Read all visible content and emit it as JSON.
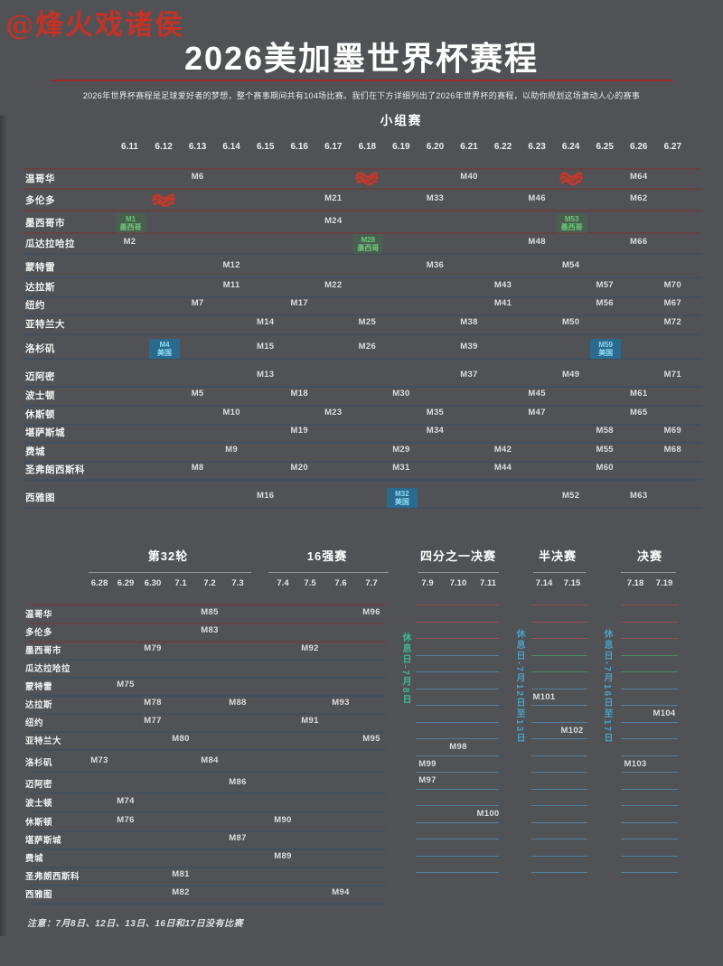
{
  "watermark": "@烽火戏诸侯",
  "title": "2026美加墨世界杯赛程",
  "subtitle": "2026年世界杯赛程是足球爱好者的梦想，整个赛事期间共有104场比赛。我们在下方详细列出了2026年世界杯的赛程，以助你规划这场激动人心的赛事",
  "footnote": "注意：7月8日、12日、13日、16日和17日没有比赛",
  "colors": {
    "background": "#505255",
    "accent_red": "#c0392b",
    "title_rule_red": "#9e2b2b",
    "watermark_red": "#c43227",
    "mexico_green": "#68c877",
    "usa_blue": "#8edcf5",
    "usa_chip_bg": "#20719c",
    "rest_day_teal": "#3db896",
    "rest_day_blue": "#49a0c6",
    "line_red": "#a05050",
    "line_green": "#4a9b66",
    "line_blue": "#538cb0"
  },
  "chart_data": {
    "type": "table",
    "title": "2026美加墨世界杯赛程",
    "cities": [
      "温哥华",
      "多伦多",
      "墨西哥市",
      "瓜达拉哈拉",
      "蒙特雷",
      "达拉斯",
      "纽约",
      "亚特兰大",
      "洛杉矶",
      "迈阿密",
      "波士顿",
      "休斯顿",
      "堪萨斯城",
      "费城",
      "圣弗朗西斯科",
      "西雅图"
    ],
    "group_stage": {
      "label": "小组赛",
      "dates": [
        "6.11",
        "6.12",
        "6.13",
        "6.14",
        "6.15",
        "6.16",
        "6.17",
        "6.18",
        "6.19",
        "6.20",
        "6.21",
        "6.22",
        "6.23",
        "6.24",
        "6.25",
        "6.26",
        "6.27"
      ],
      "matches": [
        {
          "m": "M1",
          "date": "6.11",
          "city": "墨西哥市",
          "tag": "墨西哥",
          "type": "mexico"
        },
        {
          "m": "M2",
          "date": "6.11",
          "city": "瓜达拉哈拉"
        },
        {
          "m": "M4",
          "date": "6.12",
          "city": "洛杉矶",
          "tag": "美国",
          "type": "usa"
        },
        {
          "m": "M5",
          "date": "6.13",
          "city": "波士顿"
        },
        {
          "m": "M6",
          "date": "6.13",
          "city": "温哥华"
        },
        {
          "m": "M7",
          "date": "6.13",
          "city": "纽约"
        },
        {
          "m": "M8",
          "date": "6.13",
          "city": "圣弗朗西斯科"
        },
        {
          "m": "M9",
          "date": "6.14",
          "city": "费城"
        },
        {
          "m": "M10",
          "date": "6.14",
          "city": "休斯顿"
        },
        {
          "m": "M11",
          "date": "6.14",
          "city": "达拉斯"
        },
        {
          "m": "M12",
          "date": "6.14",
          "city": "蒙特雷"
        },
        {
          "m": "M13",
          "date": "6.15",
          "city": "迈阿密"
        },
        {
          "m": "M14",
          "date": "6.15",
          "city": "亚特兰大"
        },
        {
          "m": "M15",
          "date": "6.15",
          "city": "洛杉矶"
        },
        {
          "m": "M16",
          "date": "6.15",
          "city": "西雅图"
        },
        {
          "m": "M17",
          "date": "6.16",
          "city": "纽约"
        },
        {
          "m": "M18",
          "date": "6.16",
          "city": "波士顿"
        },
        {
          "m": "M19",
          "date": "6.16",
          "city": "堪萨斯城"
        },
        {
          "m": "M20",
          "date": "6.16",
          "city": "圣弗朗西斯科"
        },
        {
          "m": "M21",
          "date": "6.17",
          "city": "多伦多"
        },
        {
          "m": "M22",
          "date": "6.17",
          "city": "达拉斯"
        },
        {
          "m": "M23",
          "date": "6.17",
          "city": "休斯顿"
        },
        {
          "m": "M24",
          "date": "6.17",
          "city": "墨西哥市"
        },
        {
          "m": "M25",
          "date": "6.18",
          "city": "亚特兰大"
        },
        {
          "m": "M26",
          "date": "6.18",
          "city": "洛杉矶"
        },
        {
          "m": "M28",
          "date": "6.18",
          "city": "瓜达拉哈拉",
          "tag": "墨西哥",
          "type": "mexico"
        },
        {
          "m": "M29",
          "date": "6.19",
          "city": "费城"
        },
        {
          "m": "M30",
          "date": "6.19",
          "city": "波士顿"
        },
        {
          "m": "M31",
          "date": "6.19",
          "city": "圣弗朗西斯科"
        },
        {
          "m": "M32",
          "date": "6.19",
          "city": "西雅图",
          "tag": "美国",
          "type": "usa"
        },
        {
          "m": "M33",
          "date": "6.20",
          "city": "多伦多"
        },
        {
          "m": "M34",
          "date": "6.20",
          "city": "堪萨斯城"
        },
        {
          "m": "M35",
          "date": "6.20",
          "city": "休斯顿"
        },
        {
          "m": "M36",
          "date": "6.20",
          "city": "蒙特雷"
        },
        {
          "m": "M37",
          "date": "6.21",
          "city": "迈阿密"
        },
        {
          "m": "M38",
          "date": "6.21",
          "city": "亚特兰大"
        },
        {
          "m": "M39",
          "date": "6.21",
          "city": "洛杉矶"
        },
        {
          "m": "M40",
          "date": "6.21",
          "city": "温哥华"
        },
        {
          "m": "M41",
          "date": "6.22",
          "city": "纽约"
        },
        {
          "m": "M42",
          "date": "6.22",
          "city": "费城"
        },
        {
          "m": "M43",
          "date": "6.22",
          "city": "达拉斯"
        },
        {
          "m": "M44",
          "date": "6.22",
          "city": "圣弗朗西斯科"
        },
        {
          "m": "M45",
          "date": "6.23",
          "city": "波士顿"
        },
        {
          "m": "M46",
          "date": "6.23",
          "city": "多伦多"
        },
        {
          "m": "M47",
          "date": "6.23",
          "city": "休斯顿"
        },
        {
          "m": "M48",
          "date": "6.23",
          "city": "瓜达拉哈拉"
        },
        {
          "m": "M49",
          "date": "6.24",
          "city": "迈阿密"
        },
        {
          "m": "M50",
          "date": "6.24",
          "city": "亚特兰大"
        },
        {
          "m": "M52",
          "date": "6.24",
          "city": "西雅图"
        },
        {
          "m": "M53",
          "date": "6.24",
          "city": "墨西哥市",
          "tag": "墨西哥",
          "type": "mexico"
        },
        {
          "m": "M54",
          "date": "6.24",
          "city": "蒙特雷"
        },
        {
          "m": "M55",
          "date": "6.25",
          "city": "费城"
        },
        {
          "m": "M56",
          "date": "6.25",
          "city": "纽约"
        },
        {
          "m": "M57",
          "date": "6.25",
          "city": "达拉斯"
        },
        {
          "m": "M58",
          "date": "6.25",
          "city": "堪萨斯城"
        },
        {
          "m": "M59",
          "date": "6.25",
          "city": "洛杉矶",
          "tag": "美国",
          "type": "usa"
        },
        {
          "m": "M60",
          "date": "6.25",
          "city": "圣弗朗西斯科"
        },
        {
          "m": "M61",
          "date": "6.26",
          "city": "波士顿"
        },
        {
          "m": "M62",
          "date": "6.26",
          "city": "多伦多"
        },
        {
          "m": "M63",
          "date": "6.26",
          "city": "西雅图"
        },
        {
          "m": "M64",
          "date": "6.26",
          "city": "温哥华"
        },
        {
          "m": "M65",
          "date": "6.26",
          "city": "休斯顿"
        },
        {
          "m": "M66",
          "date": "6.26",
          "city": "瓜达拉哈拉"
        },
        {
          "m": "M67",
          "date": "6.27",
          "city": "纽约"
        },
        {
          "m": "M68",
          "date": "6.27",
          "city": "费城"
        },
        {
          "m": "M69",
          "date": "6.27",
          "city": "堪萨斯城"
        },
        {
          "m": "M70",
          "date": "6.27",
          "city": "达拉斯"
        },
        {
          "m": "M71",
          "date": "6.27",
          "city": "迈阿密"
        },
        {
          "m": "M72",
          "date": "6.27",
          "city": "亚特兰大"
        }
      ],
      "redacted": [
        {
          "date": "6.12",
          "city": "多伦多"
        },
        {
          "date": "6.18",
          "city": "温哥华"
        },
        {
          "date": "6.24",
          "city": "温哥华"
        }
      ]
    },
    "knockout": {
      "stages": [
        {
          "label": "第32轮",
          "dates": [
            "6.28",
            "6.29",
            "6.30",
            "7.1",
            "7.2",
            "7.3"
          ]
        },
        {
          "label": "16强赛",
          "dates": [
            "7.4",
            "7.5",
            "7.6",
            "7.7"
          ]
        },
        {
          "label": "四分之一决赛",
          "dates": [
            "7.9",
            "7.10",
            "7.11"
          ]
        },
        {
          "label": "半决赛",
          "dates": [
            "7.14",
            "7.15"
          ]
        },
        {
          "label": "决赛",
          "dates": [
            "7.18",
            "7.19"
          ]
        }
      ],
      "rest_days": [
        "休息日-7月8日",
        "休息日-7月12日至13日",
        "休息日-7月16日至17日"
      ],
      "matches": [
        {
          "m": "M73",
          "date": "6.28",
          "city": "洛杉矶"
        },
        {
          "m": "M74",
          "date": "6.29",
          "city": "波士顿"
        },
        {
          "m": "M75",
          "date": "6.29",
          "city": "蒙特雷"
        },
        {
          "m": "M76",
          "date": "6.29",
          "city": "休斯顿"
        },
        {
          "m": "M77",
          "date": "6.30",
          "city": "纽约"
        },
        {
          "m": "M78",
          "date": "6.30",
          "city": "达拉斯"
        },
        {
          "m": "M79",
          "date": "6.30",
          "city": "墨西哥市"
        },
        {
          "m": "M80",
          "date": "7.1",
          "city": "亚特兰大"
        },
        {
          "m": "M81",
          "date": "7.1",
          "city": "圣弗朗西斯科"
        },
        {
          "m": "M82",
          "date": "7.1",
          "city": "西雅图"
        },
        {
          "m": "M83",
          "date": "7.2",
          "city": "多伦多"
        },
        {
          "m": "M84",
          "date": "7.2",
          "city": "洛杉矶"
        },
        {
          "m": "M85",
          "date": "7.2",
          "city": "温哥华"
        },
        {
          "m": "M86",
          "date": "7.3",
          "city": "迈阿密"
        },
        {
          "m": "M87",
          "date": "7.3",
          "city": "堪萨斯城"
        },
        {
          "m": "M88",
          "date": "7.3",
          "city": "达拉斯"
        },
        {
          "m": "M89",
          "date": "7.4",
          "city": "费城"
        },
        {
          "m": "M90",
          "date": "7.4",
          "city": "休斯顿"
        },
        {
          "m": "M91",
          "date": "7.5",
          "city": "纽约"
        },
        {
          "m": "M92",
          "date": "7.5",
          "city": "墨西哥市"
        },
        {
          "m": "M93",
          "date": "7.6",
          "city": "达拉斯"
        },
        {
          "m": "M94",
          "date": "7.6",
          "city": "西雅图"
        },
        {
          "m": "M95",
          "date": "7.7",
          "city": "亚特兰大"
        },
        {
          "m": "M96",
          "date": "7.7",
          "city": "温哥华"
        },
        {
          "m": "M97",
          "date": "7.9",
          "city": "波士顿"
        },
        {
          "m": "M99",
          "date": "7.9",
          "city": "迈阿密"
        },
        {
          "m": "M98",
          "date": "7.10",
          "city": "洛杉矶"
        },
        {
          "m": "M100",
          "date": "7.11",
          "city": "堪萨斯城"
        },
        {
          "m": "M101",
          "date": "7.14",
          "city": "达拉斯"
        },
        {
          "m": "M102",
          "date": "7.15",
          "city": "亚特兰大"
        },
        {
          "m": "M103",
          "date": "7.18",
          "city": "迈阿密"
        },
        {
          "m": "M104",
          "date": "7.19",
          "city": "纽约"
        }
      ]
    }
  }
}
